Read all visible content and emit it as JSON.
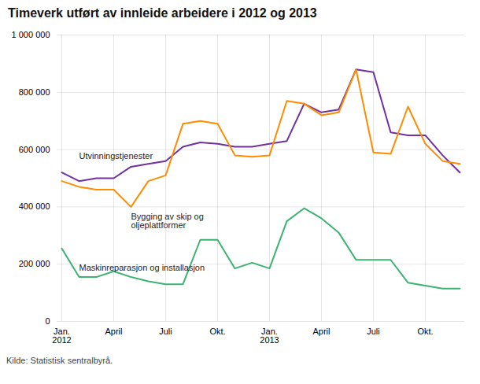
{
  "chart_data": {
    "type": "line",
    "title": "Timeverk utført av innleide arbeidere i 2012 og 2013",
    "source": "Kilde: Statistisk sentralbyrå.",
    "categories": [
      "Jan.\n2012",
      null,
      null,
      "April",
      null,
      null,
      "Juli",
      null,
      null,
      "Okt.",
      null,
      null,
      "Jan.\n2013",
      null,
      null,
      "April",
      null,
      null,
      "Juli",
      null,
      null,
      "Okt.",
      null,
      null
    ],
    "series": [
      {
        "name": "Utvinningstjenester",
        "color": "#7030A0",
        "values": [
          520000,
          490000,
          500000,
          500000,
          540000,
          550000,
          560000,
          610000,
          625000,
          620000,
          610000,
          610000,
          620000,
          630000,
          760000,
          730000,
          740000,
          880000,
          870000,
          660000,
          650000,
          650000,
          580000,
          520000
        ]
      },
      {
        "name": "Bygging av skip og\noljeplattformer",
        "color": "#FF8C00",
        "values": [
          490000,
          470000,
          460000,
          460000,
          400000,
          490000,
          510000,
          690000,
          700000,
          690000,
          580000,
          575000,
          580000,
          770000,
          760000,
          720000,
          730000,
          880000,
          590000,
          585000,
          750000,
          620000,
          560000,
          550000
        ]
      },
      {
        "name": "Maskinreparasjon og installasjon",
        "color": "#3CB371",
        "values": [
          255000,
          155000,
          155000,
          175000,
          155000,
          140000,
          130000,
          130000,
          285000,
          285000,
          185000,
          205000,
          185000,
          350000,
          395000,
          360000,
          310000,
          215000,
          215000,
          215000,
          135000,
          125000,
          115000,
          115000
        ]
      }
    ],
    "ylim": [
      0,
      1000000
    ],
    "yticks": [
      0,
      {
        "value": 200000,
        "label": "200 000"
      },
      {
        "value": 400000,
        "label": "400 000"
      },
      {
        "value": 600000,
        "label": "600 000"
      },
      {
        "value": 800000,
        "label": "800 000"
      },
      {
        "value": 1000000,
        "label": "1 000 000"
      }
    ],
    "grid": true
  }
}
